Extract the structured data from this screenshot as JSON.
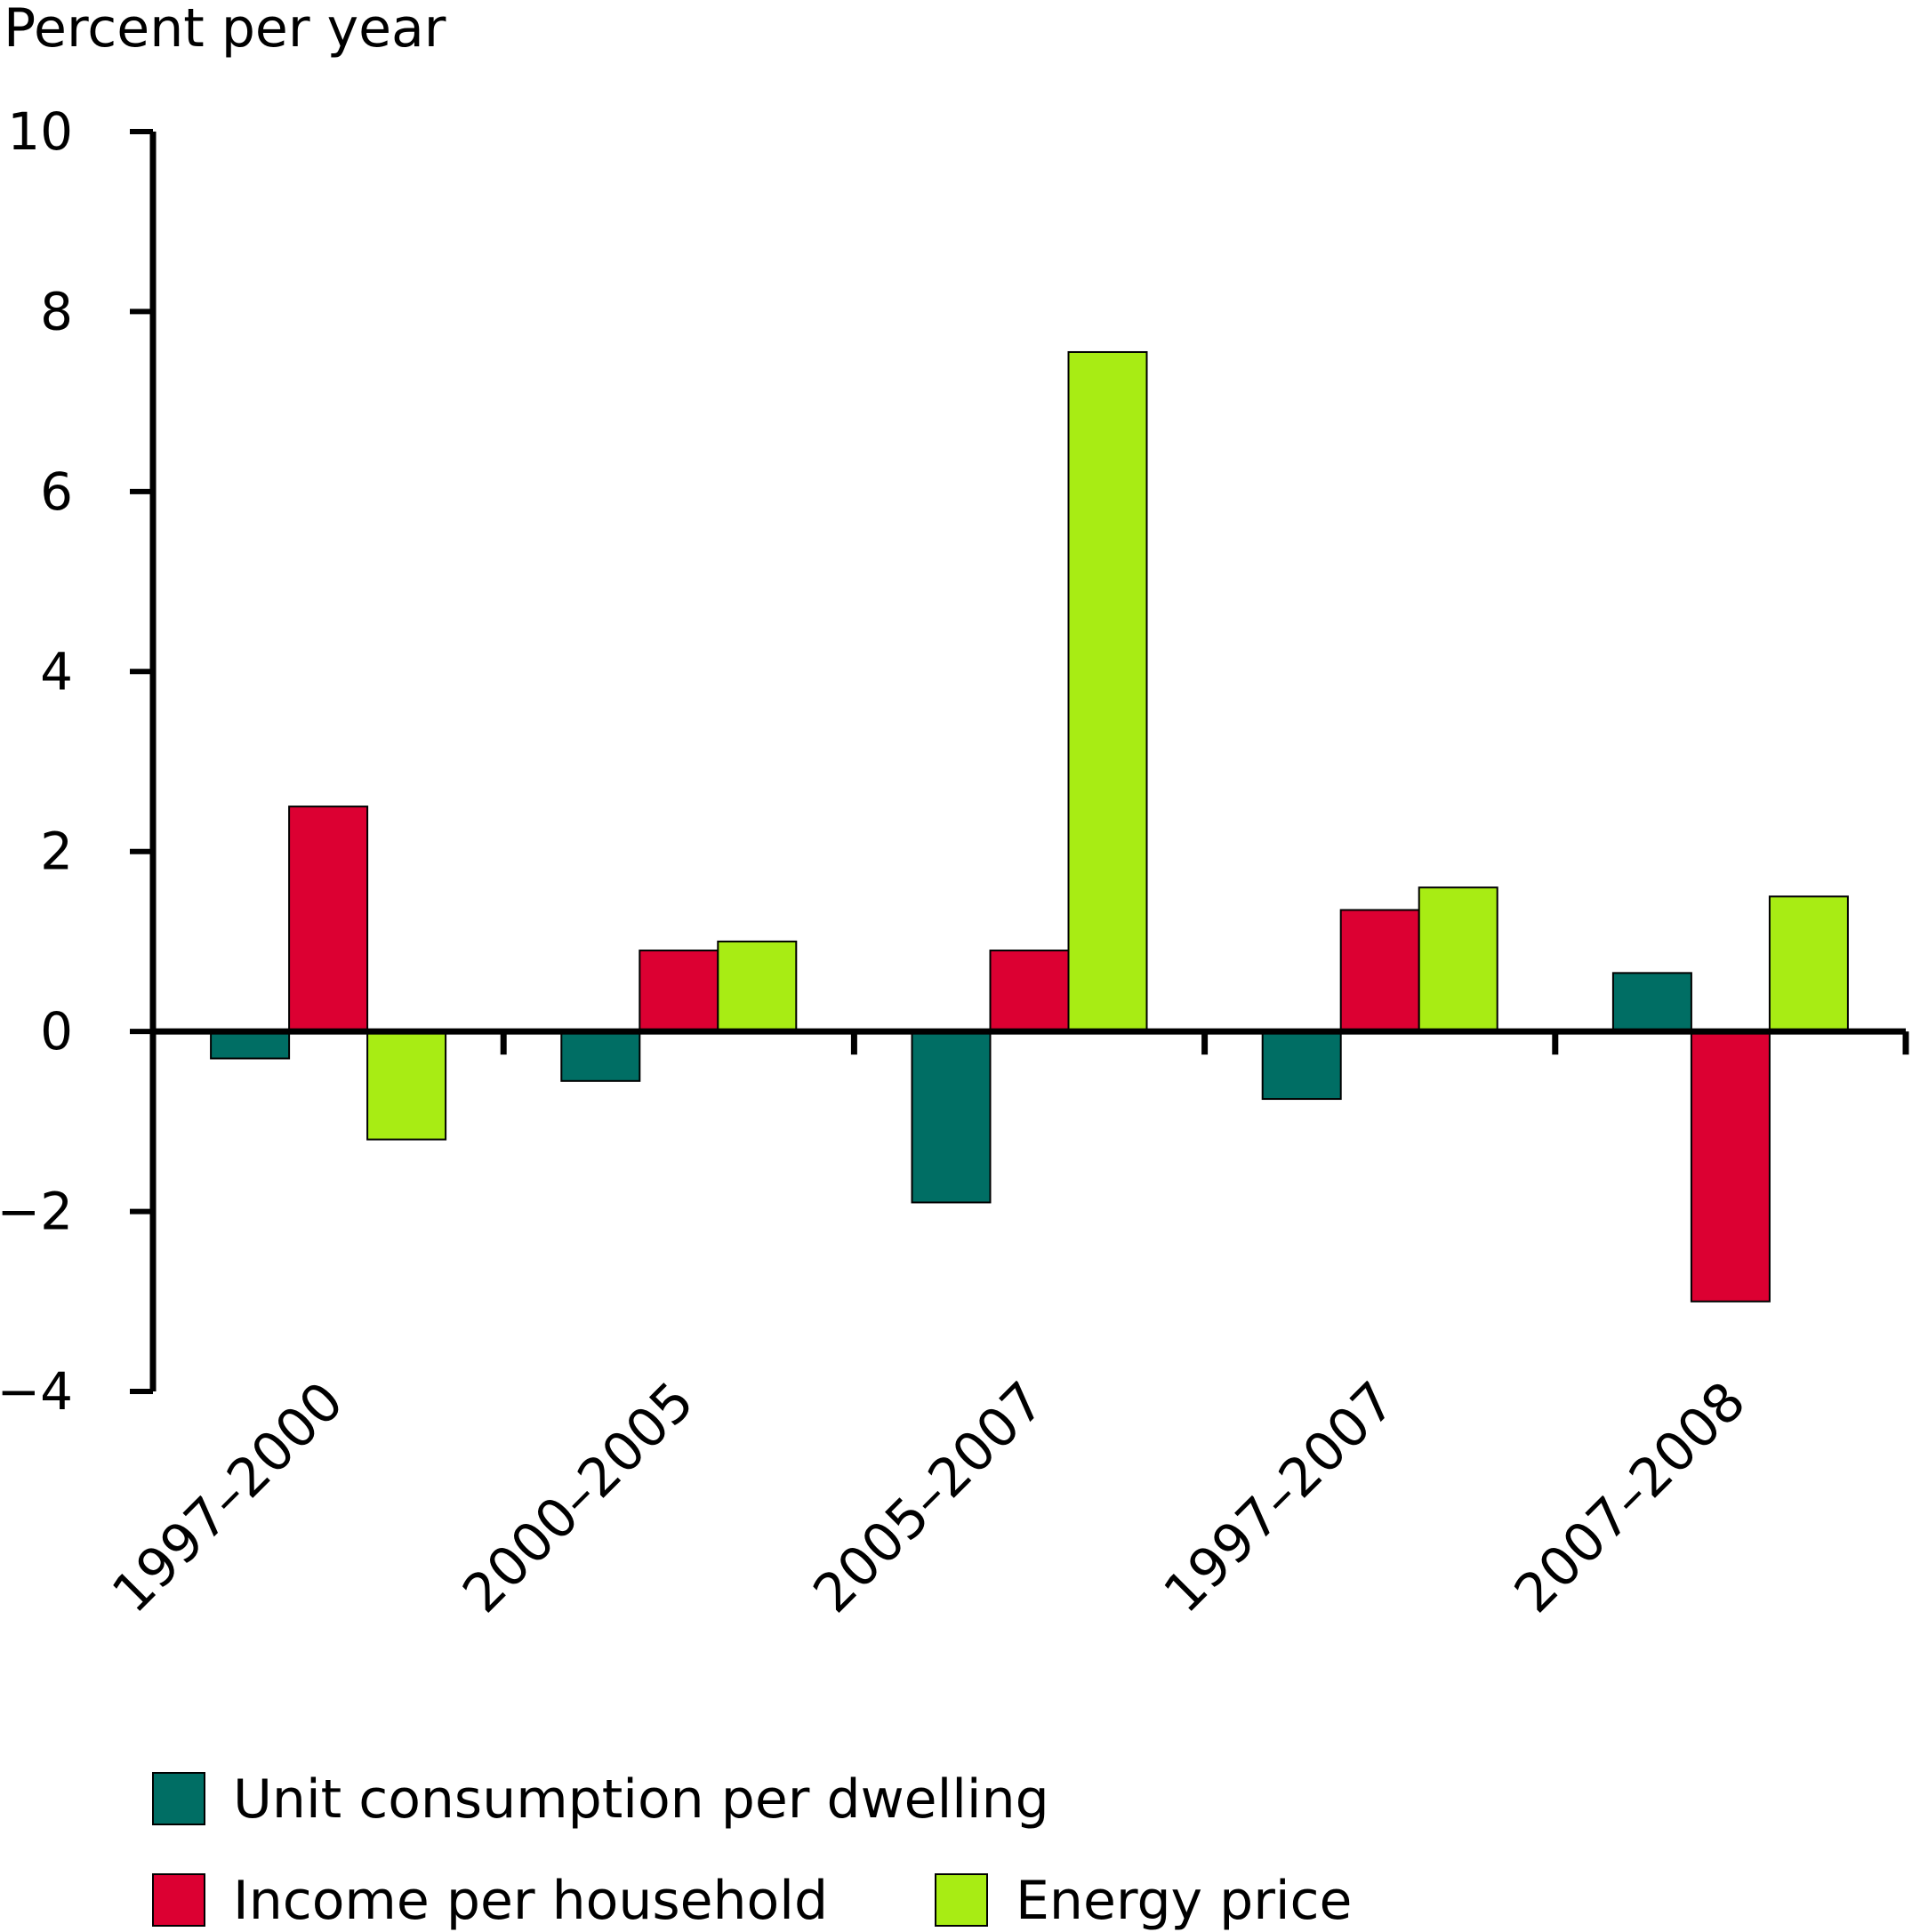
{
  "chart_data": {
    "type": "bar",
    "ylabel": "Percent per year",
    "ylim": [
      -4,
      10
    ],
    "yticks": [
      -4,
      -2,
      0,
      2,
      4,
      6,
      8,
      10
    ],
    "ytick_labels": [
      "−4",
      "−2",
      "0",
      "2",
      "4",
      "6",
      "8",
      "10"
    ],
    "categories": [
      "1997–2000",
      "2000–2005",
      "2005–2007",
      "1997–2007",
      "2007–2008"
    ],
    "series": [
      {
        "name": "Unit consumption per dwelling",
        "color": "#006e64",
        "values": [
          -0.3,
          -0.55,
          -1.9,
          -0.75,
          0.65
        ]
      },
      {
        "name": "Income per household",
        "color": "#dc0032",
        "values": [
          2.5,
          0.9,
          0.9,
          1.35,
          -3.0
        ]
      },
      {
        "name": "Energy price",
        "color": "#a8ec14",
        "values": [
          -1.2,
          1.0,
          7.55,
          1.6,
          1.5
        ]
      }
    ],
    "grid": false,
    "legend_position": "bottom"
  }
}
